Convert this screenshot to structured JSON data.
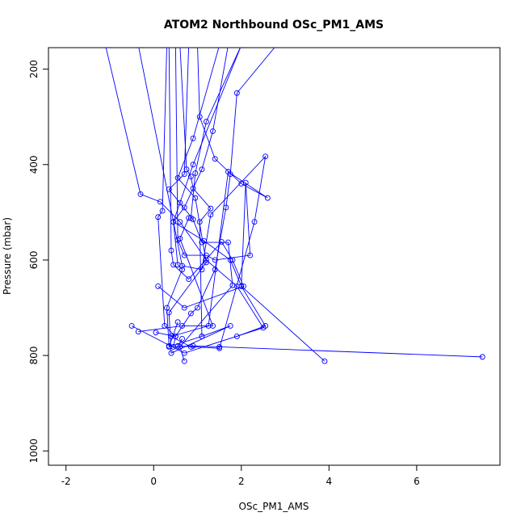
{
  "chart_data": {
    "type": "line",
    "title": "ATOM2 Northbound OSc_PM1_AMS",
    "xlabel": "OSc_PM1_AMS",
    "ylabel": "Pressure (mbar)",
    "xlim": [
      -2.4,
      7.9
    ],
    "ylim": [
      1030,
      155
    ],
    "y_reversed": true,
    "x_ticks": [
      -2,
      0,
      2,
      4,
      6
    ],
    "y_ticks": [
      200,
      400,
      600,
      800,
      1000
    ],
    "series_color": "#0000ff",
    "markers": "open-circle",
    "grid": false,
    "legend": "none",
    "series": [
      {
        "x": [
          -1.1,
          -0.3,
          0.15,
          0.6,
          1.2,
          1.9,
          2.5,
          0.7,
          -0.5
        ],
        "y": [
          150,
          462,
          478,
          520,
          600,
          655,
          742,
          795,
          738
        ]
      },
      {
        "x": [
          0.3,
          0.2,
          0.1,
          0.25,
          0.5,
          0.45,
          0.9,
          1.5,
          7.5
        ],
        "y": [
          150,
          497,
          510,
          738,
          760,
          782,
          780,
          782,
          803
        ]
      },
      {
        "x": [
          0.8,
          0.7,
          0.35,
          0.9,
          1.1,
          1.7,
          1.8,
          0.6,
          0.7
        ],
        "y": [
          150,
          420,
          452,
          515,
          563,
          563,
          653,
          782,
          812
        ]
      },
      {
        "x": [
          0.5,
          0.55,
          0.7,
          1.2,
          1.4,
          2.2,
          2.1,
          2.0,
          3.9
        ],
        "y": [
          150,
          558,
          590,
          590,
          600,
          590,
          438,
          655,
          812
        ]
      },
      {
        "x": [
          1.0,
          1.05,
          1.4,
          2.0,
          2.6,
          1.7,
          1.25,
          0.4,
          0.85
        ],
        "y": [
          150,
          300,
          388,
          440,
          470,
          415,
          738,
          760,
          782
        ]
      },
      {
        "x": [
          0.6,
          0.75,
          0.85,
          0.9,
          1.3,
          1.05,
          1.1,
          0.35,
          0.55
        ],
        "y": [
          150,
          410,
          425,
          450,
          492,
          520,
          760,
          782,
          730
        ]
      },
      {
        "x": [
          1.5,
          0.9,
          0.55,
          0.95,
          1.2,
          0.35,
          0.4,
          1.75,
          1.1
        ],
        "y": [
          150,
          345,
          428,
          470,
          605,
          710,
          795,
          738,
          760
        ]
      },
      {
        "x": [
          2.0,
          1.2,
          0.95,
          0.85,
          0.8,
          0.6,
          1.35,
          0.65,
          -0.35
        ],
        "y": [
          150,
          310,
          418,
          512,
          512,
          555,
          738,
          738,
          750
        ]
      },
      {
        "x": [
          2.8,
          1.9,
          1.75,
          1.65,
          1.4,
          1.0,
          0.85,
          0.5,
          0.05
        ],
        "y": [
          150,
          250,
          420,
          490,
          620,
          700,
          712,
          760,
          752
        ]
      },
      {
        "x": [
          0.35,
          0.4,
          0.45,
          0.8,
          1.55,
          1.8,
          2.05,
          0.7,
          0.1
        ],
        "y": [
          150,
          580,
          610,
          640,
          562,
          600,
          655,
          700,
          655
        ]
      },
      {
        "x": [
          -0.35,
          0.65,
          1.1,
          1.3,
          2.55,
          2.3,
          1.5,
          0.55,
          0.65
        ],
        "y": [
          150,
          612,
          620,
          505,
          383,
          520,
          785,
          780,
          765
        ]
      },
      {
        "x": [
          1.7,
          1.35,
          1.1,
          0.7,
          0.45,
          0.55,
          0.65,
          0.3,
          0.35
        ],
        "y": [
          150,
          330,
          410,
          490,
          520,
          610,
          620,
          700,
          780
        ]
      },
      {
        "x": [
          2.0,
          0.9,
          0.6,
          0.45,
          1.15,
          1.75,
          2.0,
          2.55,
          1.9
        ],
        "y": [
          150,
          400,
          480,
          520,
          560,
          600,
          655,
          738,
          760
        ]
      }
    ]
  }
}
